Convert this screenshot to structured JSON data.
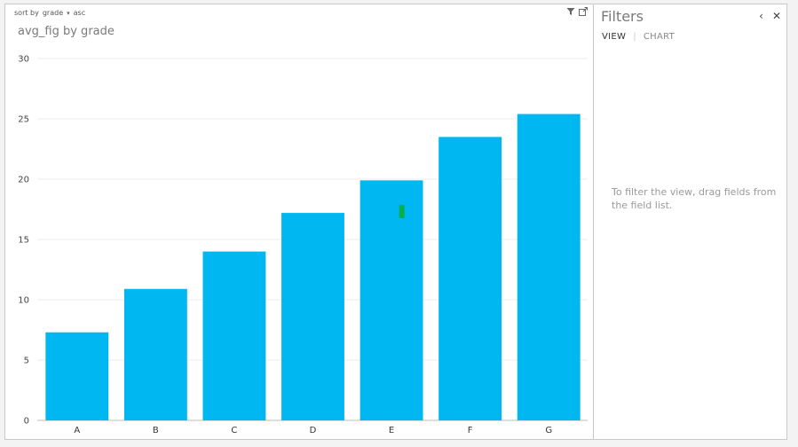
{
  "chart_panel": {
    "sort_label": "sort by",
    "sort_field": "grade",
    "sort_order": "asc",
    "title": "avg_fig by grade",
    "icons": [
      "filter-icon",
      "popout-icon"
    ]
  },
  "filters_panel": {
    "title": "Filters",
    "tabs": [
      "VIEW",
      "CHART"
    ],
    "hint": "To filter the view, drag fields from the field list.",
    "controls": {
      "collapse": "‹",
      "close": "✕"
    }
  },
  "colors": {
    "bar": "#00b7f1",
    "cursor_marker": "#00b050",
    "gridline": "#ececec",
    "axis": "#555555"
  },
  "chart_data": {
    "type": "bar",
    "title": "avg_fig by grade",
    "categories": [
      "A",
      "B",
      "C",
      "D",
      "E",
      "F",
      "G"
    ],
    "values": [
      7.3,
      10.9,
      14.0,
      17.2,
      19.9,
      23.5,
      25.4
    ],
    "ylim": [
      0,
      30
    ],
    "yticks": [
      0,
      5,
      10,
      15,
      20,
      25,
      30
    ],
    "grid": true,
    "legend": "none"
  }
}
